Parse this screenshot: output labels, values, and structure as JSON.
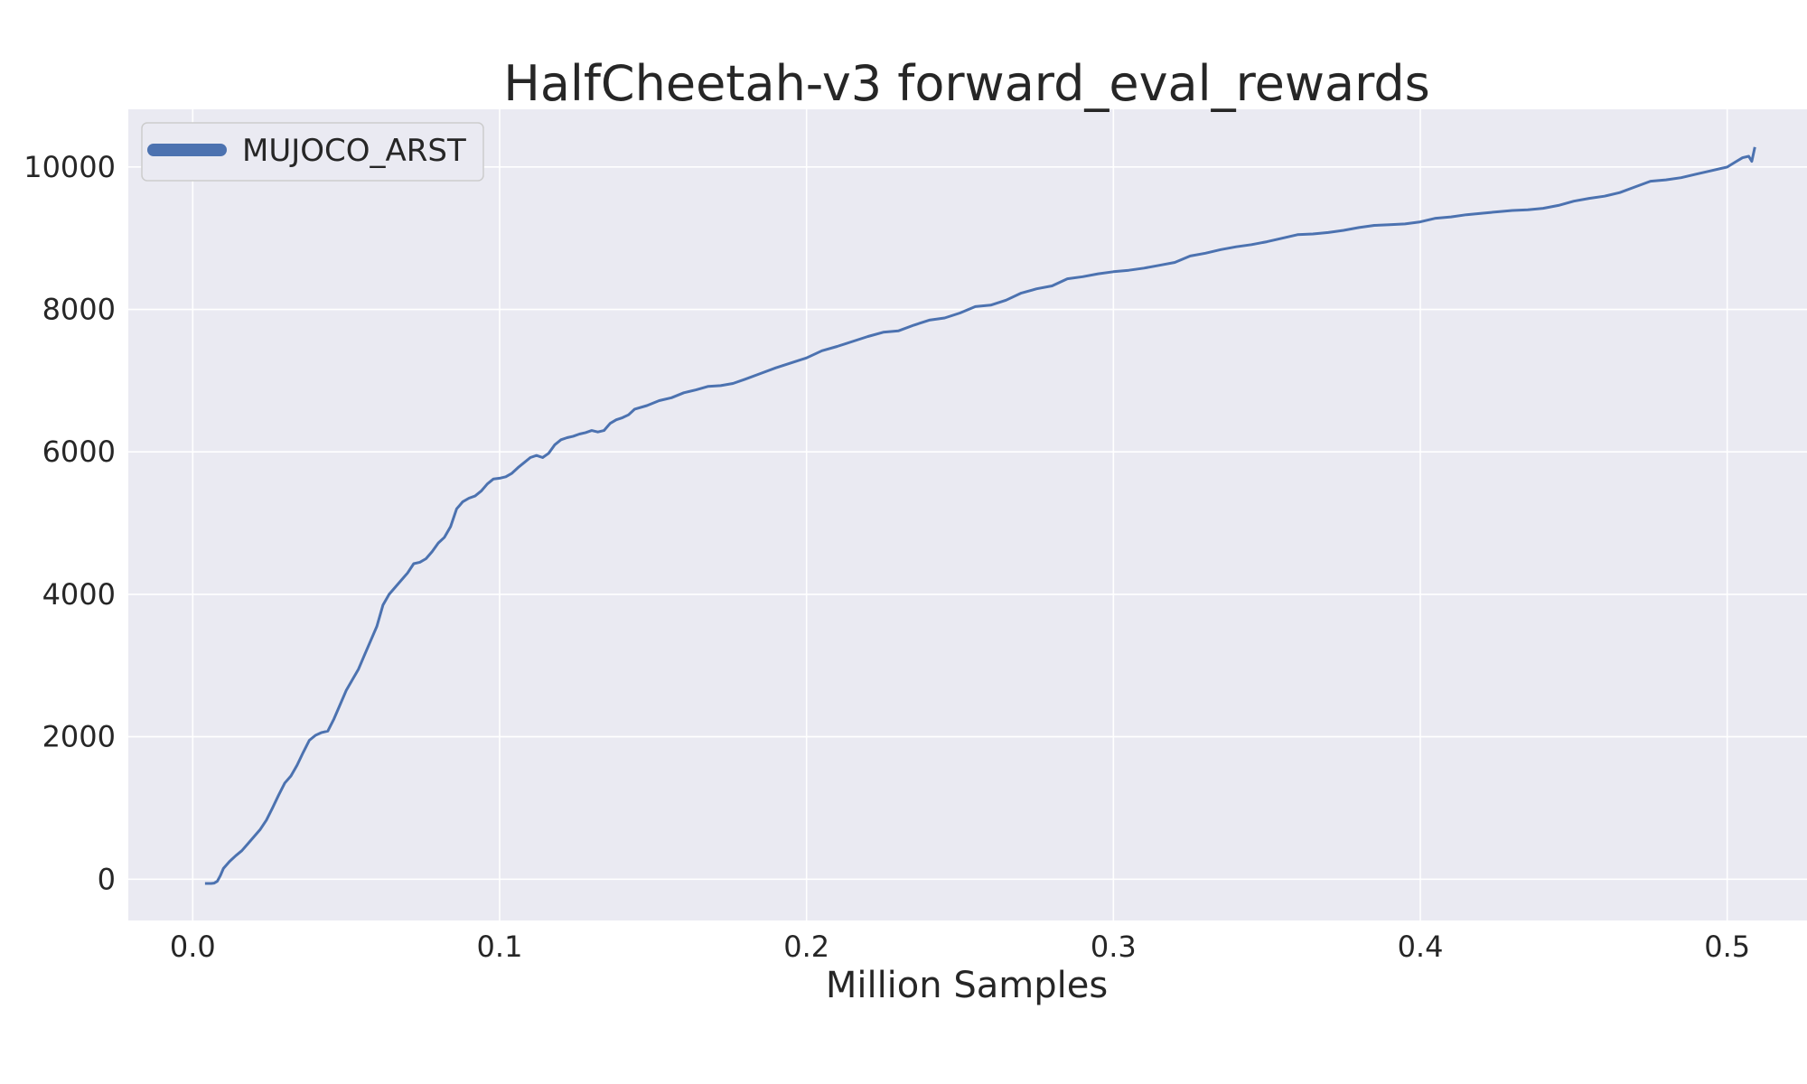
{
  "chart_data": {
    "type": "line",
    "title": "HalfCheetah-v3 forward_eval_rewards",
    "xlabel": "Million Samples",
    "ylabel": "",
    "xlim": [
      -0.021,
      0.526
    ],
    "ylim": [
      -580,
      10810
    ],
    "xticks": [
      0.0,
      0.1,
      0.2,
      0.3,
      0.4,
      0.5
    ],
    "xtick_labels": [
      "0.0",
      "0.1",
      "0.2",
      "0.3",
      "0.4",
      "0.5"
    ],
    "yticks": [
      0,
      2000,
      4000,
      6000,
      8000,
      10000
    ],
    "ytick_labels": [
      "0",
      "2000",
      "4000",
      "6000",
      "8000",
      "10000"
    ],
    "grid": true,
    "legend": "top-left",
    "background": "#eaeaf2",
    "series": [
      {
        "name": "MUJOCO_ARST",
        "color": "#4c72b0",
        "x": [
          0.004,
          0.006,
          0.007,
          0.008,
          0.009,
          0.01,
          0.012,
          0.014,
          0.016,
          0.018,
          0.02,
          0.022,
          0.024,
          0.026,
          0.028,
          0.03,
          0.032,
          0.034,
          0.036,
          0.038,
          0.04,
          0.042,
          0.044,
          0.046,
          0.048,
          0.05,
          0.052,
          0.054,
          0.056,
          0.058,
          0.06,
          0.062,
          0.064,
          0.066,
          0.068,
          0.07,
          0.072,
          0.074,
          0.076,
          0.078,
          0.08,
          0.082,
          0.084,
          0.086,
          0.088,
          0.09,
          0.092,
          0.094,
          0.096,
          0.098,
          0.1,
          0.102,
          0.104,
          0.106,
          0.108,
          0.11,
          0.112,
          0.114,
          0.116,
          0.118,
          0.12,
          0.122,
          0.124,
          0.126,
          0.128,
          0.13,
          0.132,
          0.134,
          0.136,
          0.138,
          0.14,
          0.142,
          0.144,
          0.148,
          0.152,
          0.156,
          0.16,
          0.164,
          0.168,
          0.172,
          0.176,
          0.18,
          0.185,
          0.19,
          0.195,
          0.2,
          0.205,
          0.21,
          0.215,
          0.22,
          0.225,
          0.23,
          0.235,
          0.24,
          0.245,
          0.25,
          0.255,
          0.26,
          0.265,
          0.27,
          0.275,
          0.28,
          0.285,
          0.29,
          0.295,
          0.3,
          0.305,
          0.31,
          0.315,
          0.32,
          0.325,
          0.33,
          0.335,
          0.34,
          0.345,
          0.35,
          0.355,
          0.36,
          0.365,
          0.37,
          0.375,
          0.38,
          0.385,
          0.39,
          0.395,
          0.4,
          0.405,
          0.41,
          0.415,
          0.42,
          0.425,
          0.43,
          0.435,
          0.44,
          0.445,
          0.45,
          0.455,
          0.46,
          0.465,
          0.47,
          0.475,
          0.48,
          0.485,
          0.49,
          0.495,
          0.5,
          0.503,
          0.505,
          0.507,
          0.508,
          0.509
        ],
        "y": [
          -60,
          -60,
          -55,
          -30,
          50,
          150,
          250,
          330,
          400,
          500,
          600,
          700,
          830,
          1000,
          1180,
          1350,
          1450,
          1600,
          1780,
          1950,
          2020,
          2060,
          2080,
          2250,
          2450,
          2650,
          2800,
          2950,
          3150,
          3350,
          3550,
          3850,
          4000,
          4100,
          4200,
          4300,
          4430,
          4450,
          4500,
          4600,
          4720,
          4800,
          4950,
          5200,
          5300,
          5350,
          5380,
          5450,
          5550,
          5620,
          5630,
          5650,
          5700,
          5780,
          5850,
          5920,
          5950,
          5920,
          5980,
          6100,
          6170,
          6200,
          6220,
          6250,
          6270,
          6300,
          6280,
          6300,
          6400,
          6450,
          6480,
          6520,
          6600,
          6650,
          6720,
          6760,
          6830,
          6870,
          6920,
          6930,
          6960,
          7020,
          7100,
          7180,
          7250,
          7320,
          7420,
          7480,
          7550,
          7620,
          7680,
          7700,
          7780,
          7850,
          7880,
          7950,
          8040,
          8060,
          8130,
          8230,
          8290,
          8330,
          8430,
          8460,
          8500,
          8530,
          8550,
          8580,
          8620,
          8660,
          8750,
          8790,
          8840,
          8880,
          8910,
          8950,
          9000,
          9050,
          9060,
          9080,
          9110,
          9150,
          9180,
          9190,
          9200,
          9230,
          9280,
          9300,
          9330,
          9350,
          9370,
          9390,
          9400,
          9420,
          9460,
          9520,
          9560,
          9590,
          9640,
          9720,
          9800,
          9820,
          9850,
          9900,
          9950,
          10000,
          10080,
          10130,
          10150,
          10080,
          10280
        ]
      }
    ]
  }
}
